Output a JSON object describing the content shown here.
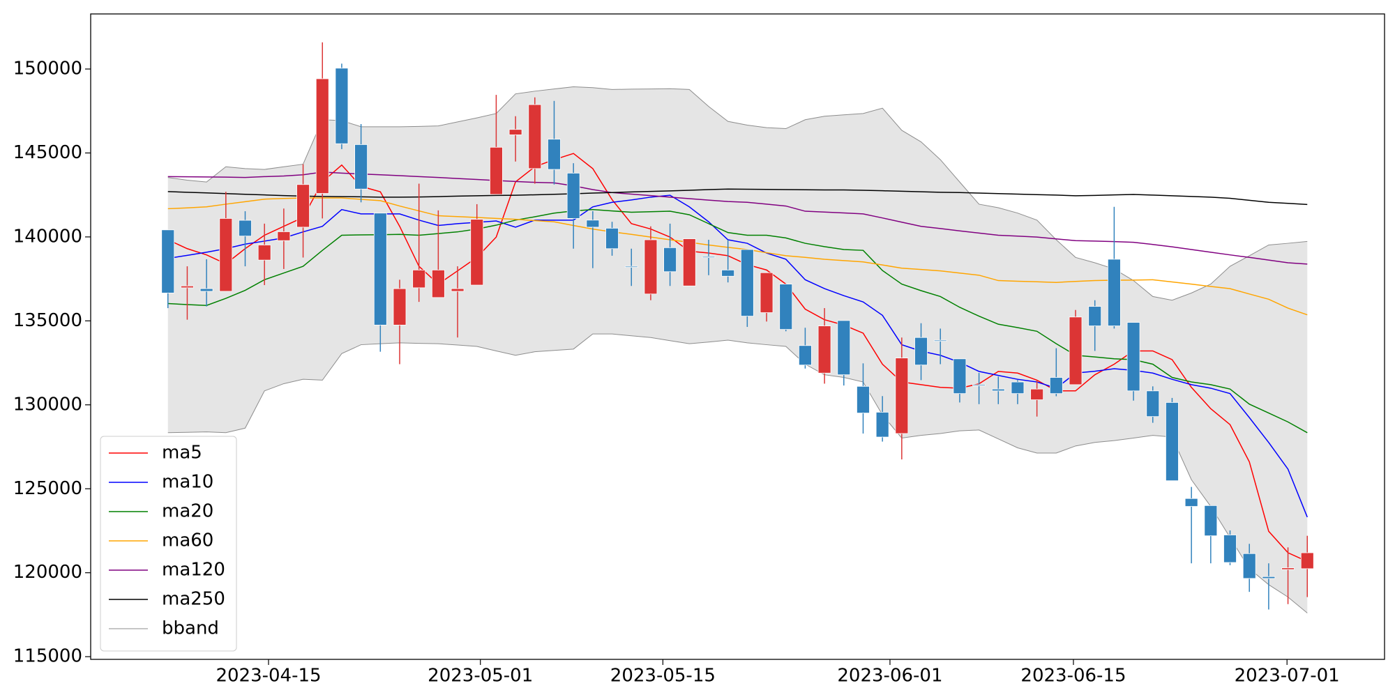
{
  "chart_data": {
    "type": "candlestick",
    "categories": [
      null,
      null,
      null,
      null,
      null,
      null,
      null,
      null,
      null,
      null,
      null,
      null,
      null,
      null,
      null,
      null,
      null,
      null,
      null,
      null,
      null,
      null,
      null,
      null,
      null,
      null,
      null,
      null,
      null,
      null,
      null,
      null,
      null,
      null,
      null,
      null,
      null,
      null,
      null,
      null,
      null,
      null,
      null,
      null,
      null,
      null,
      null,
      null,
      null,
      null,
      null,
      null,
      null,
      null,
      null,
      null,
      null,
      null,
      null,
      null
    ],
    "open": [
      140420,
      136970,
      136920,
      136760,
      140990,
      138620,
      139780,
      140580,
      142590,
      150050,
      145500,
      141420,
      134750,
      136970,
      136390,
      136760,
      137130,
      142530,
      146080,
      144070,
      145820,
      143800,
      141000,
      140520,
      138250,
      136600,
      139360,
      137080,
      138830,
      138030,
      139250,
      135490,
      137190,
      133530,
      131890,
      135020,
      131100,
      129560,
      128290,
      134010,
      133850,
      132740,
      131200,
      130940,
      131360,
      130300,
      131630,
      131200,
      135860,
      138670,
      134910,
      130830,
      130140,
      124420,
      124000,
      122250,
      121140,
      119770,
      120190,
      120240
    ],
    "high": [
      140420,
      138250,
      138670,
      142690,
      141530,
      140790,
      141690,
      144330,
      151590,
      150320,
      146720,
      141420,
      137450,
      143170,
      141580,
      138250,
      141950,
      148460,
      147190,
      148310,
      148100,
      144390,
      141530,
      140900,
      139300,
      140630,
      140790,
      139890,
      139830,
      139830,
      139250,
      137870,
      137190,
      134590,
      135760,
      135020,
      132470,
      130520,
      134010,
      134860,
      134540,
      132740,
      131900,
      131680,
      131470,
      131470,
      133370,
      135650,
      136230,
      141790,
      134910,
      131100,
      130410,
      125110,
      124000,
      122520,
      121720,
      120560,
      121510,
      122200
    ],
    "low": [
      135760,
      135070,
      135860,
      136760,
      138250,
      137130,
      138090,
      138770,
      141100,
      145230,
      142060,
      133160,
      132420,
      136130,
      136390,
      134010,
      137130,
      142530,
      144490,
      143170,
      143120,
      139300,
      138140,
      138880,
      137080,
      136230,
      137080,
      137080,
      137720,
      137290,
      134640,
      134960,
      134380,
      132160,
      131260,
      131150,
      128290,
      127810,
      126750,
      131470,
      132420,
      130140,
      130040,
      130040,
      130040,
      129300,
      130510,
      131200,
      133210,
      134540,
      130250,
      128930,
      125480,
      120560,
      120560,
      120450,
      118860,
      117810,
      118130,
      118550
    ],
    "close": [
      136660,
      137080,
      136760,
      141100,
      140050,
      139520,
      140310,
      143120,
      149420,
      145550,
      142850,
      134750,
      136920,
      138030,
      138030,
      136920,
      141050,
      145340,
      146400,
      147880,
      144020,
      141100,
      140580,
      139300,
      138200,
      139830,
      137930,
      139890,
      138780,
      137660,
      135280,
      137870,
      134490,
      132370,
      134700,
      131790,
      129510,
      128080,
      132790,
      132370,
      133800,
      130670,
      131150,
      130830,
      130670,
      130940,
      130670,
      135230,
      134700,
      134700,
      130830,
      129300,
      125480,
      123950,
      122200,
      120610,
      119660,
      119660,
      120290,
      121190
    ],
    "up_color": "#dc3535",
    "down_color": "#3182bd",
    "series": [
      {
        "name": "ma5",
        "color": "#ff0000",
        "values": [
          139830,
          139300,
          138930,
          138400,
          139300,
          140100,
          140630,
          141160,
          143280,
          144280,
          143010,
          142690,
          140630,
          138250,
          137190,
          137980,
          138780,
          139990,
          143280,
          144180,
          144600,
          144970,
          144070,
          142220,
          140790,
          140470,
          139990,
          139150,
          139040,
          138880,
          138350,
          138030,
          137190,
          135700,
          135070,
          134750,
          134270,
          132420,
          131360,
          131200,
          131040,
          130990,
          131250,
          131990,
          131890,
          131470,
          130830,
          130830,
          131790,
          132420,
          133210,
          133210,
          132690,
          131040,
          129770,
          128820,
          126600,
          122470,
          121190,
          120670
        ]
      },
      {
        "name": "ma10",
        "color": "#0000ff",
        "values": [
          138720,
          138900,
          139090,
          139300,
          139570,
          139750,
          139940,
          140300,
          140630,
          141630,
          141370,
          141370,
          141370,
          141000,
          140680,
          140790,
          140870,
          140950,
          140580,
          141000,
          141000,
          141000,
          141790,
          142060,
          142200,
          142370,
          142480,
          141790,
          140900,
          139830,
          139620,
          139040,
          138670,
          137450,
          136920,
          136500,
          136130,
          135330,
          133580,
          133200,
          132950,
          132530,
          131990,
          131750,
          131520,
          131360,
          130990,
          131890,
          132000,
          132150,
          132050,
          131890,
          131520,
          131200,
          130990,
          130670,
          129240,
          127760,
          126170,
          123310
        ]
      },
      {
        "name": "ma20",
        "color": "#008000",
        "values": [
          136030,
          135970,
          135920,
          136340,
          136820,
          137450,
          137850,
          138250,
          139200,
          140100,
          140120,
          140130,
          140150,
          140100,
          140200,
          140300,
          140470,
          140700,
          141000,
          141200,
          141420,
          141550,
          141630,
          141550,
          141470,
          141500,
          141530,
          141320,
          140790,
          140260,
          140100,
          140100,
          139940,
          139620,
          139420,
          139250,
          139200,
          138000,
          137190,
          136800,
          136450,
          135810,
          135280,
          134800,
          134600,
          134380,
          133640,
          132950,
          132850,
          132740,
          132690,
          132420,
          131630,
          131360,
          131200,
          130940,
          130040,
          129510,
          128980,
          128340
        ]
      },
      {
        "name": "ma60",
        "color": "#ffa500",
        "values": [
          141680,
          141730,
          141790,
          141950,
          142100,
          142250,
          142290,
          142320,
          142320,
          142320,
          142240,
          142160,
          141840,
          141550,
          141260,
          141210,
          141160,
          141100,
          141050,
          140970,
          140900,
          140680,
          140470,
          140300,
          140150,
          139990,
          139830,
          139680,
          139520,
          139380,
          139250,
          139060,
          138880,
          138780,
          138670,
          138590,
          138510,
          138330,
          138140,
          138060,
          137980,
          137850,
          137720,
          137400,
          137360,
          137330,
          137290,
          137350,
          137400,
          137420,
          137430,
          137450,
          137320,
          137190,
          137050,
          136920,
          136600,
          136290,
          135760,
          135360
        ]
      },
      {
        "name": "ma120",
        "color": "#800080",
        "values": [
          143590,
          143580,
          143570,
          143560,
          143540,
          143590,
          143630,
          143700,
          143860,
          143800,
          143750,
          143700,
          143650,
          143590,
          143540,
          143480,
          143420,
          143360,
          143300,
          143250,
          143220,
          143040,
          142820,
          142640,
          142550,
          142460,
          142370,
          142280,
          142190,
          142110,
          142060,
          141950,
          141840,
          141530,
          141480,
          141430,
          141370,
          141130,
          140880,
          140630,
          140500,
          140360,
          140230,
          140100,
          140050,
          139990,
          139880,
          139780,
          139750,
          139720,
          139680,
          139550,
          139410,
          139250,
          139090,
          138930,
          138780,
          138620,
          138460,
          138380
        ]
      },
      {
        "name": "ma250",
        "color": "#000000",
        "values": [
          142700,
          142660,
          142620,
          142580,
          142540,
          142500,
          142460,
          142430,
          142410,
          142400,
          142390,
          142370,
          142370,
          142380,
          142400,
          142430,
          142450,
          142470,
          142480,
          142510,
          142540,
          142570,
          142610,
          142640,
          142680,
          142710,
          142740,
          142780,
          142820,
          142850,
          142840,
          142830,
          142820,
          142810,
          142800,
          142800,
          142780,
          142750,
          142720,
          142690,
          142660,
          142640,
          142610,
          142580,
          142550,
          142520,
          142490,
          142450,
          142470,
          142500,
          142530,
          142490,
          142450,
          142410,
          142370,
          142300,
          142180,
          142060,
          142000,
          141930
        ]
      }
    ],
    "band": {
      "name": "bband",
      "color": "#8c8c8c",
      "fill": "#e5e5e5",
      "upper": [
        143540,
        143380,
        143270,
        144180,
        144070,
        144020,
        144180,
        144330,
        146980,
        146930,
        146560,
        146560,
        146560,
        146580,
        146610,
        146850,
        147090,
        147350,
        148520,
        148680,
        148810,
        148940,
        148890,
        148780,
        148800,
        148810,
        148830,
        148780,
        147770,
        146880,
        146660,
        146510,
        146450,
        146980,
        147190,
        147270,
        147350,
        147670,
        146350,
        145660,
        144600,
        143270,
        141950,
        141740,
        141420,
        141000,
        139830,
        138780,
        138460,
        138090,
        137400,
        136450,
        136230,
        136660,
        137190,
        138250,
        138880,
        139520,
        139620,
        139730
      ],
      "lower": [
        128340,
        128360,
        128390,
        128340,
        128610,
        130830,
        131260,
        131520,
        131470,
        133050,
        133580,
        133640,
        133690,
        133660,
        133640,
        133560,
        133480,
        133210,
        132950,
        133160,
        133240,
        133320,
        134220,
        134220,
        134110,
        134010,
        133820,
        133640,
        133740,
        133850,
        133690,
        133580,
        133480,
        132420,
        131790,
        131630,
        131360,
        129400,
        128020,
        128180,
        128290,
        128450,
        128500,
        127970,
        127440,
        127130,
        127130,
        127550,
        127760,
        127870,
        128020,
        128180,
        128080,
        125540,
        123950,
        122100,
        120240,
        119290,
        118550,
        117600
      ]
    },
    "xlim": [
      -4.0,
      63.0
    ],
    "xticks": [
      {
        "value": 5.21,
        "label": "2023-04-15"
      },
      {
        "value": 16.18,
        "label": "2023-05-01"
      },
      {
        "value": 25.63,
        "label": "2023-05-15"
      },
      {
        "value": 37.39,
        "label": "2023-06-01"
      },
      {
        "value": 46.89,
        "label": "2023-06-15"
      },
      {
        "value": 57.95,
        "label": "2023-07-01"
      }
    ],
    "ylim": [
      114840,
      153280
    ],
    "yticks": [
      115000,
      120000,
      125000,
      130000,
      135000,
      140000,
      145000,
      150000
    ],
    "legend": "lower left"
  }
}
